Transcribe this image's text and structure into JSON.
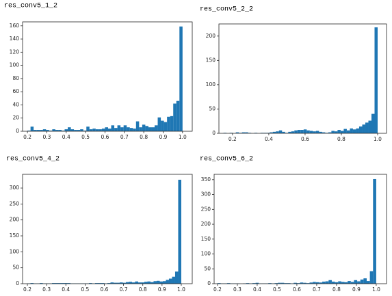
{
  "chart_data": [
    {
      "type": "histogram",
      "title": "res_conv5_1_2",
      "color": "#1f77b4",
      "bins": [
        0.2,
        0.216,
        0.232,
        0.248,
        0.264,
        0.28,
        0.296,
        0.312,
        0.328,
        0.344,
        0.36,
        0.376,
        0.392,
        0.408,
        0.424,
        0.44,
        0.456,
        0.472,
        0.488,
        0.504,
        0.52,
        0.536,
        0.552,
        0.568,
        0.584,
        0.6,
        0.616,
        0.632,
        0.648,
        0.664,
        0.68,
        0.696,
        0.712,
        0.728,
        0.744,
        0.76,
        0.776,
        0.792,
        0.808,
        0.824,
        0.84,
        0.856,
        0.872,
        0.888,
        0.904,
        0.92,
        0.936,
        0.952,
        0.968,
        0.984,
        1.0
      ],
      "values": [
        1,
        7,
        2,
        2,
        2,
        3,
        2,
        1,
        3,
        2,
        2,
        1,
        3,
        6,
        3,
        2,
        2,
        3,
        1,
        7,
        3,
        4,
        3,
        3,
        4,
        6,
        4,
        9,
        5,
        9,
        6,
        9,
        6,
        5,
        4,
        15,
        6,
        10,
        8,
        6,
        6,
        9,
        21,
        16,
        14,
        22,
        23,
        42,
        46,
        159
      ],
      "xlim": [
        0.175,
        1.05
      ],
      "ylim": [
        0,
        166
      ],
      "xticks": [
        0.2,
        0.3,
        0.4,
        0.5,
        0.6,
        0.7,
        0.8,
        0.9,
        {
          "value": 1,
          "label": "1.0"
        }
      ],
      "yticks": [
        0,
        20,
        40,
        60,
        80,
        100,
        120,
        140,
        160
      ]
    },
    {
      "type": "histogram",
      "title": "res_conv5_2_2",
      "color": "#1f77b4",
      "bins": [
        0.15,
        0.167,
        0.184,
        0.201,
        0.218,
        0.235,
        0.252,
        0.269,
        0.286,
        0.303,
        0.32,
        0.337,
        0.354,
        0.371,
        0.388,
        0.405,
        0.422,
        0.439,
        0.456,
        0.473,
        0.49,
        0.507,
        0.524,
        0.541,
        0.558,
        0.575,
        0.592,
        0.609,
        0.626,
        0.643,
        0.66,
        0.677,
        0.694,
        0.711,
        0.728,
        0.745,
        0.762,
        0.779,
        0.796,
        0.813,
        0.83,
        0.847,
        0.864,
        0.881,
        0.898,
        0.915,
        0.932,
        0.949,
        0.966,
        0.983,
        1.0
      ],
      "values": [
        1,
        0,
        1,
        0,
        2,
        1,
        2,
        2,
        1,
        0,
        1,
        0,
        1,
        1,
        1,
        2,
        3,
        4,
        6,
        3,
        1,
        3,
        4,
        6,
        7,
        7,
        8,
        6,
        5,
        4,
        5,
        3,
        2,
        1,
        2,
        5,
        4,
        7,
        5,
        9,
        6,
        10,
        8,
        10,
        14,
        18,
        22,
        26,
        40,
        218
      ],
      "xlim": [
        0.125,
        1.049
      ],
      "ylim": [
        0,
        225
      ],
      "xticks": [
        0.2,
        0.4,
        0.6,
        0.8,
        {
          "value": 1,
          "label": "1.0"
        }
      ],
      "yticks": [
        0,
        50,
        100,
        150,
        200
      ]
    },
    {
      "type": "histogram",
      "title": "res_conv5_4_2",
      "color": "#1f77b4",
      "bins": [
        0.2,
        0.216,
        0.232,
        0.248,
        0.264,
        0.28,
        0.296,
        0.312,
        0.328,
        0.344,
        0.36,
        0.376,
        0.392,
        0.408,
        0.424,
        0.44,
        0.456,
        0.472,
        0.488,
        0.504,
        0.52,
        0.536,
        0.552,
        0.568,
        0.584,
        0.6,
        0.616,
        0.632,
        0.648,
        0.664,
        0.68,
        0.696,
        0.712,
        0.728,
        0.744,
        0.76,
        0.776,
        0.792,
        0.808,
        0.824,
        0.84,
        0.856,
        0.872,
        0.888,
        0.904,
        0.92,
        0.936,
        0.952,
        0.968,
        0.984,
        1.0
      ],
      "values": [
        1,
        2,
        1,
        1,
        2,
        1,
        1,
        1,
        2,
        2,
        2,
        2,
        2,
        2,
        1,
        1,
        1,
        1,
        1,
        1,
        2,
        1,
        2,
        2,
        2,
        1,
        2,
        4,
        3,
        3,
        4,
        3,
        5,
        6,
        4,
        7,
        4,
        4,
        6,
        7,
        5,
        8,
        9,
        7,
        8,
        12,
        16,
        22,
        38,
        326
      ],
      "xlim": [
        0.175,
        1.057
      ],
      "ylim": [
        0,
        343
      ],
      "xticks": [
        0.2,
        0.3,
        0.4,
        0.5,
        0.6,
        0.7,
        0.8,
        0.9,
        {
          "value": 1,
          "label": "1.0"
        }
      ],
      "yticks": [
        0,
        50,
        100,
        150,
        200,
        250,
        300
      ]
    },
    {
      "type": "histogram",
      "title": "res_conv5_6_2",
      "color": "#1f77b4",
      "bins": [
        0.2,
        0.216,
        0.232,
        0.248,
        0.264,
        0.28,
        0.296,
        0.312,
        0.328,
        0.344,
        0.36,
        0.376,
        0.392,
        0.408,
        0.424,
        0.44,
        0.456,
        0.472,
        0.488,
        0.504,
        0.52,
        0.536,
        0.552,
        0.568,
        0.584,
        0.6,
        0.616,
        0.632,
        0.648,
        0.664,
        0.68,
        0.696,
        0.712,
        0.728,
        0.744,
        0.76,
        0.776,
        0.792,
        0.808,
        0.824,
        0.84,
        0.856,
        0.872,
        0.888,
        0.904,
        0.92,
        0.936,
        0.952,
        0.968,
        0.984,
        1.0
      ],
      "values": [
        2,
        1,
        1,
        2,
        1,
        1,
        1,
        0,
        1,
        2,
        1,
        2,
        3,
        1,
        1,
        1,
        2,
        1,
        2,
        3,
        3,
        2,
        2,
        1,
        3,
        2,
        4,
        3,
        2,
        4,
        6,
        5,
        4,
        7,
        8,
        12,
        7,
        5,
        8,
        6,
        5,
        9,
        6,
        12,
        8,
        14,
        18,
        9,
        42,
        352
      ],
      "xlim": [
        0.183,
        1.052
      ],
      "ylim": [
        0,
        368
      ],
      "xticks": [
        0.2,
        0.3,
        0.4,
        0.5,
        0.6,
        0.7,
        0.8,
        0.9,
        {
          "value": 1,
          "label": "1.0"
        }
      ],
      "yticks": [
        0,
        50,
        100,
        150,
        200,
        250,
        300,
        350
      ]
    }
  ]
}
